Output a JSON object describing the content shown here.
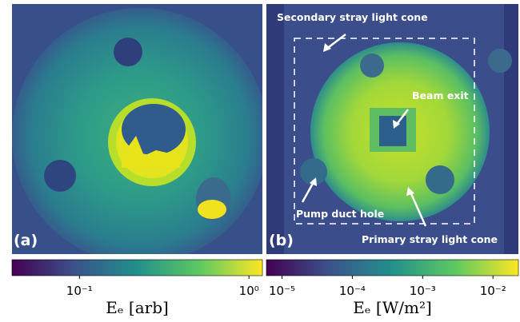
{
  "chart_data": [
    {
      "type": "heatmap",
      "panel_label": "(a)",
      "colorbar": {
        "label": "Eₑ [arb]",
        "log": true,
        "lim": [
          0.04,
          1.2
        ],
        "ticks": [
          {
            "value": 0.1,
            "label": "10⁻¹"
          },
          {
            "value": 1,
            "label": "10⁰"
          }
        ]
      }
    },
    {
      "type": "heatmap",
      "panel_label": "(b)",
      "annotations": [
        "Secondary stray light cone",
        "Beam exit",
        "Pump duct hole",
        "Primary stray light cone"
      ],
      "colorbar": {
        "label": "Eₑ [W/m²]",
        "log": true,
        "lim": [
          6e-06,
          0.023
        ],
        "ticks": [
          {
            "value": 1e-05,
            "label": "10⁻⁵"
          },
          {
            "value": 0.0001,
            "label": "10⁻⁴"
          },
          {
            "value": 0.001,
            "label": "10⁻³"
          },
          {
            "value": 0.01,
            "label": "10⁻²"
          }
        ]
      }
    }
  ]
}
